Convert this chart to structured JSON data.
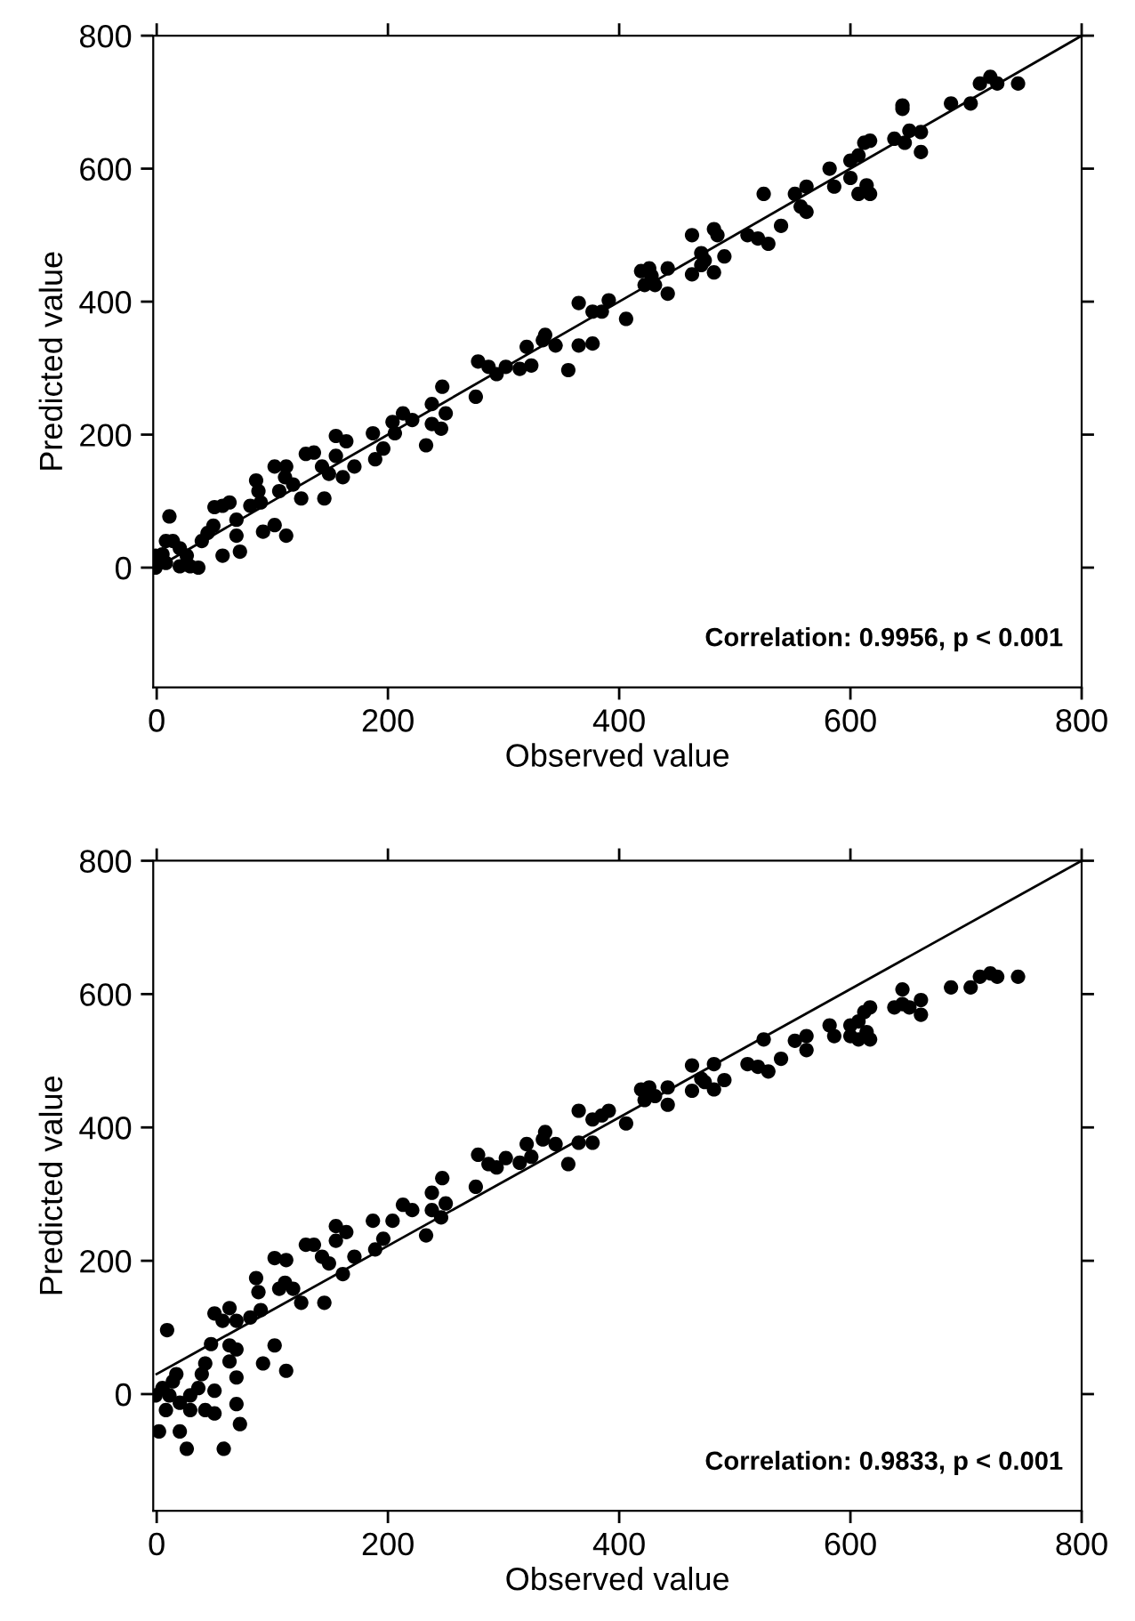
{
  "chart_data": [
    {
      "type": "scatter",
      "xlabel": "Observed value",
      "ylabel": "Predicted value",
      "annotations": [
        "Correlation: 0.9956, p < 0.001"
      ],
      "xlim": [
        -3,
        800
      ],
      "ylim": [
        -180,
        800
      ],
      "xticks": [
        0,
        200,
        400,
        600,
        800
      ],
      "yticks": [
        0,
        200,
        400,
        600,
        800
      ],
      "grid": false,
      "series": [
        {
          "marker": "circle",
          "color": "#000000",
          "x": [
            745,
            727,
            721,
            712,
            704,
            687,
            645,
            645,
            661,
            661,
            651,
            647,
            638,
            617,
            612,
            607,
            600,
            600,
            617,
            607,
            614,
            582,
            586,
            562,
            552,
            562,
            557,
            540,
            529,
            520,
            511,
            525,
            491,
            482,
            482,
            485,
            471,
            471,
            463,
            463,
            474,
            442,
            442,
            431,
            426,
            419,
            422,
            428,
            406,
            391,
            385,
            377,
            377,
            365,
            365,
            356,
            345,
            336,
            334,
            324,
            320,
            314,
            302,
            294,
            287,
            278,
            276,
            247,
            250,
            246,
            238,
            238,
            233,
            221,
            213,
            204,
            206,
            196,
            189,
            187,
            171,
            164,
            155,
            155,
            161,
            149,
            143,
            136,
            129,
            145,
            125,
            118,
            111,
            102,
            112,
            106,
            102,
            112,
            92,
            86,
            88,
            90,
            81,
            63,
            50,
            57,
            69,
            69,
            72,
            57,
            49,
            44,
            39,
            26,
            11,
            14,
            5,
            -1,
            8,
            20,
            29,
            36,
            20,
            8,
            -1
          ],
          "values": [
            728,
            728,
            738,
            728,
            698,
            698,
            695,
            690,
            655,
            625,
            657,
            639,
            645,
            642,
            639,
            620,
            612,
            586,
            562,
            562,
            575,
            600,
            573,
            573,
            562,
            535,
            543,
            514,
            487,
            495,
            500,
            562,
            468,
            444,
            509,
            500,
            473,
            455,
            500,
            441,
            462,
            450,
            412,
            425,
            450,
            446,
            425,
            439,
            374,
            402,
            385,
            385,
            337,
            398,
            334,
            297,
            334,
            350,
            342,
            304,
            332,
            299,
            302,
            291,
            302,
            310,
            257,
            272,
            232,
            209,
            216,
            246,
            184,
            222,
            232,
            219,
            202,
            179,
            163,
            202,
            152,
            190,
            198,
            168,
            136,
            141,
            152,
            173,
            171,
            104,
            104,
            125,
            136,
            152,
            152,
            115,
            64,
            48,
            54,
            131,
            115,
            98,
            93,
            98,
            91,
            93,
            72,
            48,
            24,
            18,
            63,
            52,
            40,
            18,
            77,
            40,
            20,
            0,
            7,
            2,
            2,
            0,
            29,
            40,
            18
          ]
        },
        {
          "type": "line",
          "color": "#000000",
          "x": [
            0,
            800
          ],
          "values": [
            0,
            800
          ]
        }
      ]
    },
    {
      "type": "scatter",
      "xlabel": "Observed value",
      "ylabel": "Predicted value",
      "annotations": [
        "Correlation: 0.9833, p < 0.001"
      ],
      "xlim": [
        -3,
        800
      ],
      "ylim": [
        -175,
        800
      ],
      "xticks": [
        0,
        200,
        400,
        600,
        800
      ],
      "yticks": [
        0,
        200,
        400,
        600,
        800
      ],
      "grid": false,
      "series": [
        {
          "marker": "circle",
          "color": "#000000",
          "x": [
            745,
            727,
            721,
            712,
            704,
            687,
            645,
            645,
            661,
            661,
            651,
            638,
            617,
            612,
            607,
            600,
            600,
            617,
            607,
            614,
            582,
            586,
            562,
            552,
            562,
            540,
            529,
            520,
            511,
            525,
            491,
            482,
            482,
            471,
            463,
            463,
            474,
            442,
            442,
            431,
            426,
            419,
            422,
            406,
            391,
            385,
            377,
            377,
            365,
            365,
            356,
            345,
            336,
            334,
            324,
            320,
            314,
            302,
            294,
            287,
            278,
            276,
            247,
            250,
            246,
            238,
            238,
            233,
            221,
            213,
            204,
            196,
            189,
            187,
            171,
            164,
            155,
            155,
            161,
            149,
            143,
            136,
            129,
            145,
            125,
            118,
            111,
            102,
            112,
            106,
            102,
            112,
            92,
            86,
            88,
            90,
            81,
            63,
            50,
            57,
            69,
            63,
            69,
            63,
            69,
            69,
            72,
            58,
            50,
            47,
            42,
            39,
            26,
            20,
            29,
            9,
            2,
            14,
            5,
            -1,
            8,
            20,
            36,
            42,
            50,
            17,
            11,
            29
          ],
          "values": [
            626,
            626,
            631,
            626,
            610,
            610,
            607,
            585,
            591,
            569,
            580,
            580,
            580,
            573,
            559,
            553,
            537,
            532,
            532,
            543,
            553,
            537,
            537,
            530,
            516,
            503,
            484,
            491,
            495,
            532,
            471,
            457,
            495,
            473,
            493,
            455,
            468,
            460,
            434,
            447,
            460,
            457,
            441,
            406,
            425,
            418,
            412,
            377,
            425,
            377,
            345,
            375,
            393,
            382,
            356,
            375,
            347,
            354,
            340,
            345,
            359,
            311,
            324,
            286,
            265,
            276,
            302,
            238,
            276,
            284,
            260,
            233,
            217,
            260,
            206,
            243,
            252,
            230,
            180,
            196,
            206,
            224,
            224,
            137,
            137,
            158,
            167,
            204,
            201,
            158,
            73,
            35,
            46,
            174,
            153,
            126,
            115,
            129,
            121,
            110,
            110,
            73,
            67,
            49,
            25,
            -15,
            -45,
            -82,
            5,
            75,
            46,
            30,
            -82,
            -56,
            -24,
            96,
            -56,
            19,
            9,
            -2,
            -24,
            -13,
            9,
            -24,
            -29,
            30,
            -2,
            -2
          ]
        },
        {
          "type": "line",
          "color": "#000000",
          "x": [
            0,
            800
          ],
          "values": [
            30,
            800
          ]
        }
      ]
    }
  ]
}
